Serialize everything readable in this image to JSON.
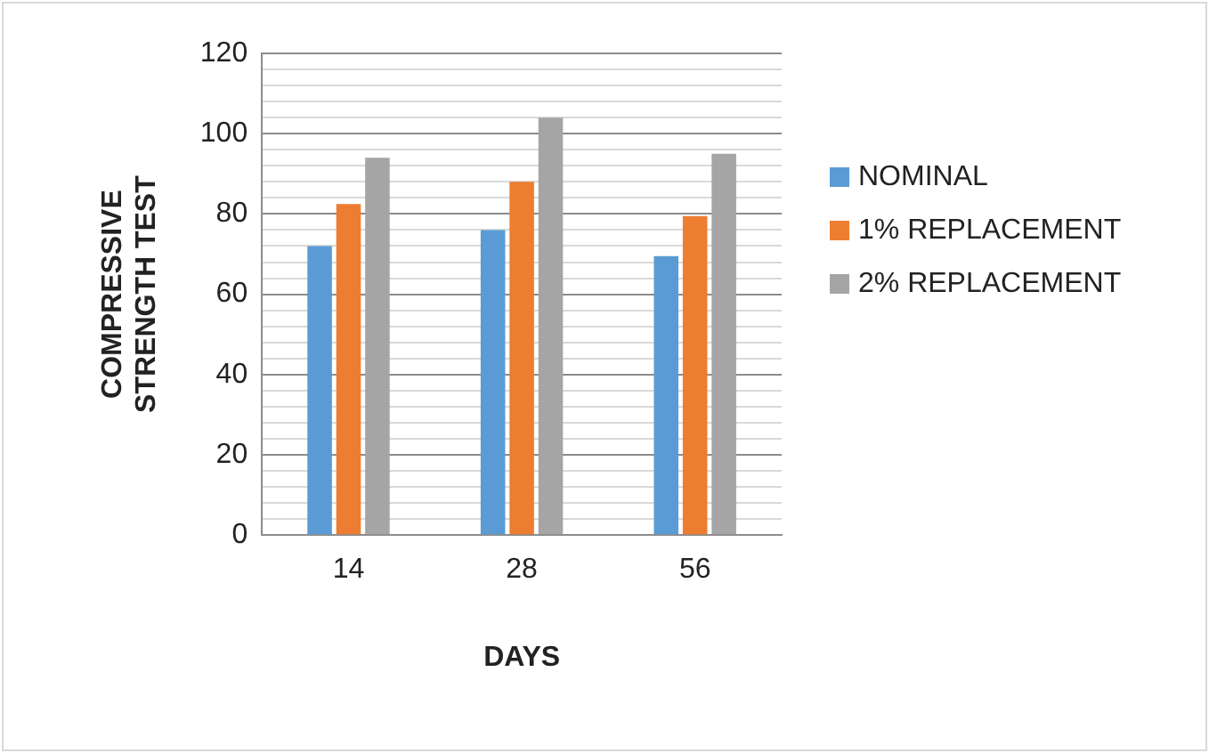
{
  "chart_data": {
    "type": "bar",
    "xlabel": "DAYS",
    "ylabel": "COMPRESSIVE STRENGTH TEST",
    "categories": [
      "14",
      "28",
      "56"
    ],
    "series": [
      {
        "name": "NOMINAL",
        "color": "#5b9bd5",
        "values": [
          72,
          76,
          69.5
        ]
      },
      {
        "name": "1% REPLACEMENT",
        "color": "#ed7d31",
        "values": [
          82.5,
          88,
          79.5
        ]
      },
      {
        "name": "2% REPLACEMENT",
        "color": "#a5a5a5",
        "values": [
          94,
          104,
          95
        ]
      }
    ],
    "ylim": [
      0,
      120
    ],
    "yticks": [
      0,
      {
        "value": 4,
        "label": null
      },
      {
        "value": 8,
        "label": null
      },
      {
        "value": 12,
        "label": null
      },
      {
        "value": 16,
        "label": null
      },
      20,
      {
        "value": 24,
        "label": null
      },
      {
        "value": 28,
        "label": null
      },
      {
        "value": 32,
        "label": null
      },
      {
        "value": 36,
        "label": null
      },
      40,
      {
        "value": 44,
        "label": null
      },
      {
        "value": 48,
        "label": null
      },
      {
        "value": 52,
        "label": null
      },
      {
        "value": 56,
        "label": null
      },
      60,
      {
        "value": 64,
        "label": null
      },
      {
        "value": 68,
        "label": null
      },
      {
        "value": 72,
        "label": null
      },
      {
        "value": 76,
        "label": null
      },
      80,
      {
        "value": 84,
        "label": null
      },
      {
        "value": 88,
        "label": null
      },
      {
        "value": 92,
        "label": null
      },
      {
        "value": 96,
        "label": null
      },
      100,
      {
        "value": 104,
        "label": null
      },
      {
        "value": 108,
        "label": null
      },
      {
        "value": 112,
        "label": null
      },
      {
        "value": 116,
        "label": null
      },
      120
    ],
    "grid": "y",
    "legend": "right"
  }
}
